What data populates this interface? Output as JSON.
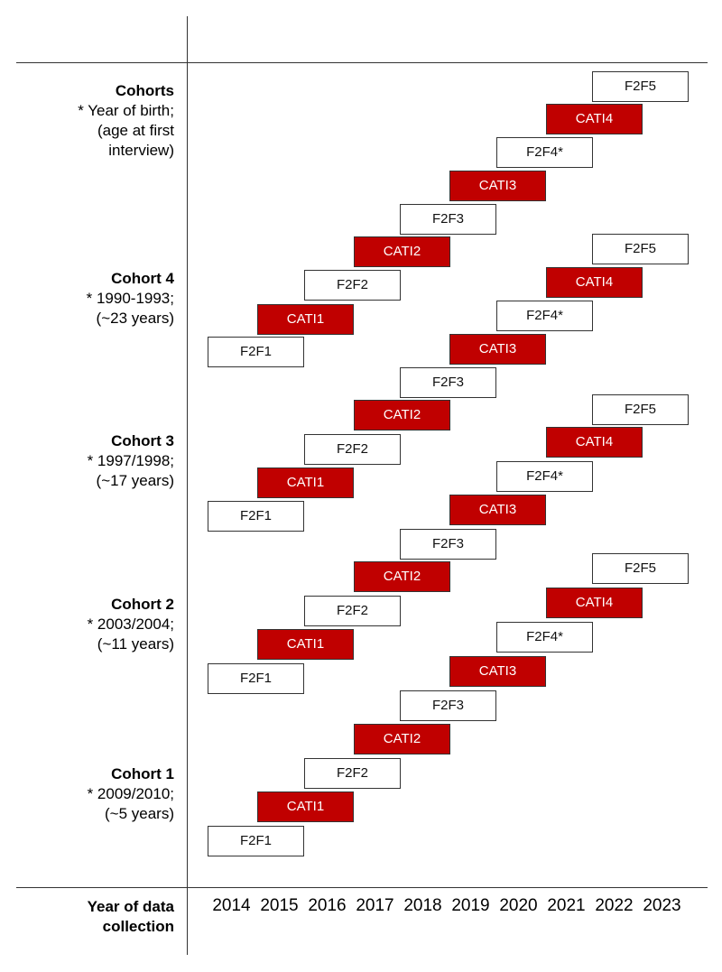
{
  "header": {
    "title": "Cohorts",
    "lines": [
      "* Year of birth;",
      "(age at first",
      "interview)"
    ]
  },
  "cohorts": [
    {
      "title": "Cohort 4",
      "birth": "* 1990-1993;",
      "age": "(~23 years)"
    },
    {
      "title": "Cohort 3",
      "birth": "* 1997/1998;",
      "age": "(~17 years)"
    },
    {
      "title": "Cohort 2",
      "birth": "* 2003/2004;",
      "age": "(~11 years)"
    },
    {
      "title": "Cohort 1",
      "birth": "* 2009/2010;",
      "age": "(~5 years)"
    }
  ],
  "footer": {
    "label_line1": "Year of data",
    "label_line2": "collection"
  },
  "years": [
    "2014",
    "2015",
    "2016",
    "2017",
    "2018",
    "2019",
    "2020",
    "2021",
    "2022",
    "2023"
  ],
  "waves": [
    "F2F1",
    "CATI1",
    "F2F2",
    "CATI2",
    "F2F3",
    "CATI3",
    "F2F4*",
    "CATI4",
    "F2F5"
  ],
  "colors": {
    "cati_fill": "#c00000",
    "f2f_fill": "#ffffff",
    "border": "#333333"
  }
}
